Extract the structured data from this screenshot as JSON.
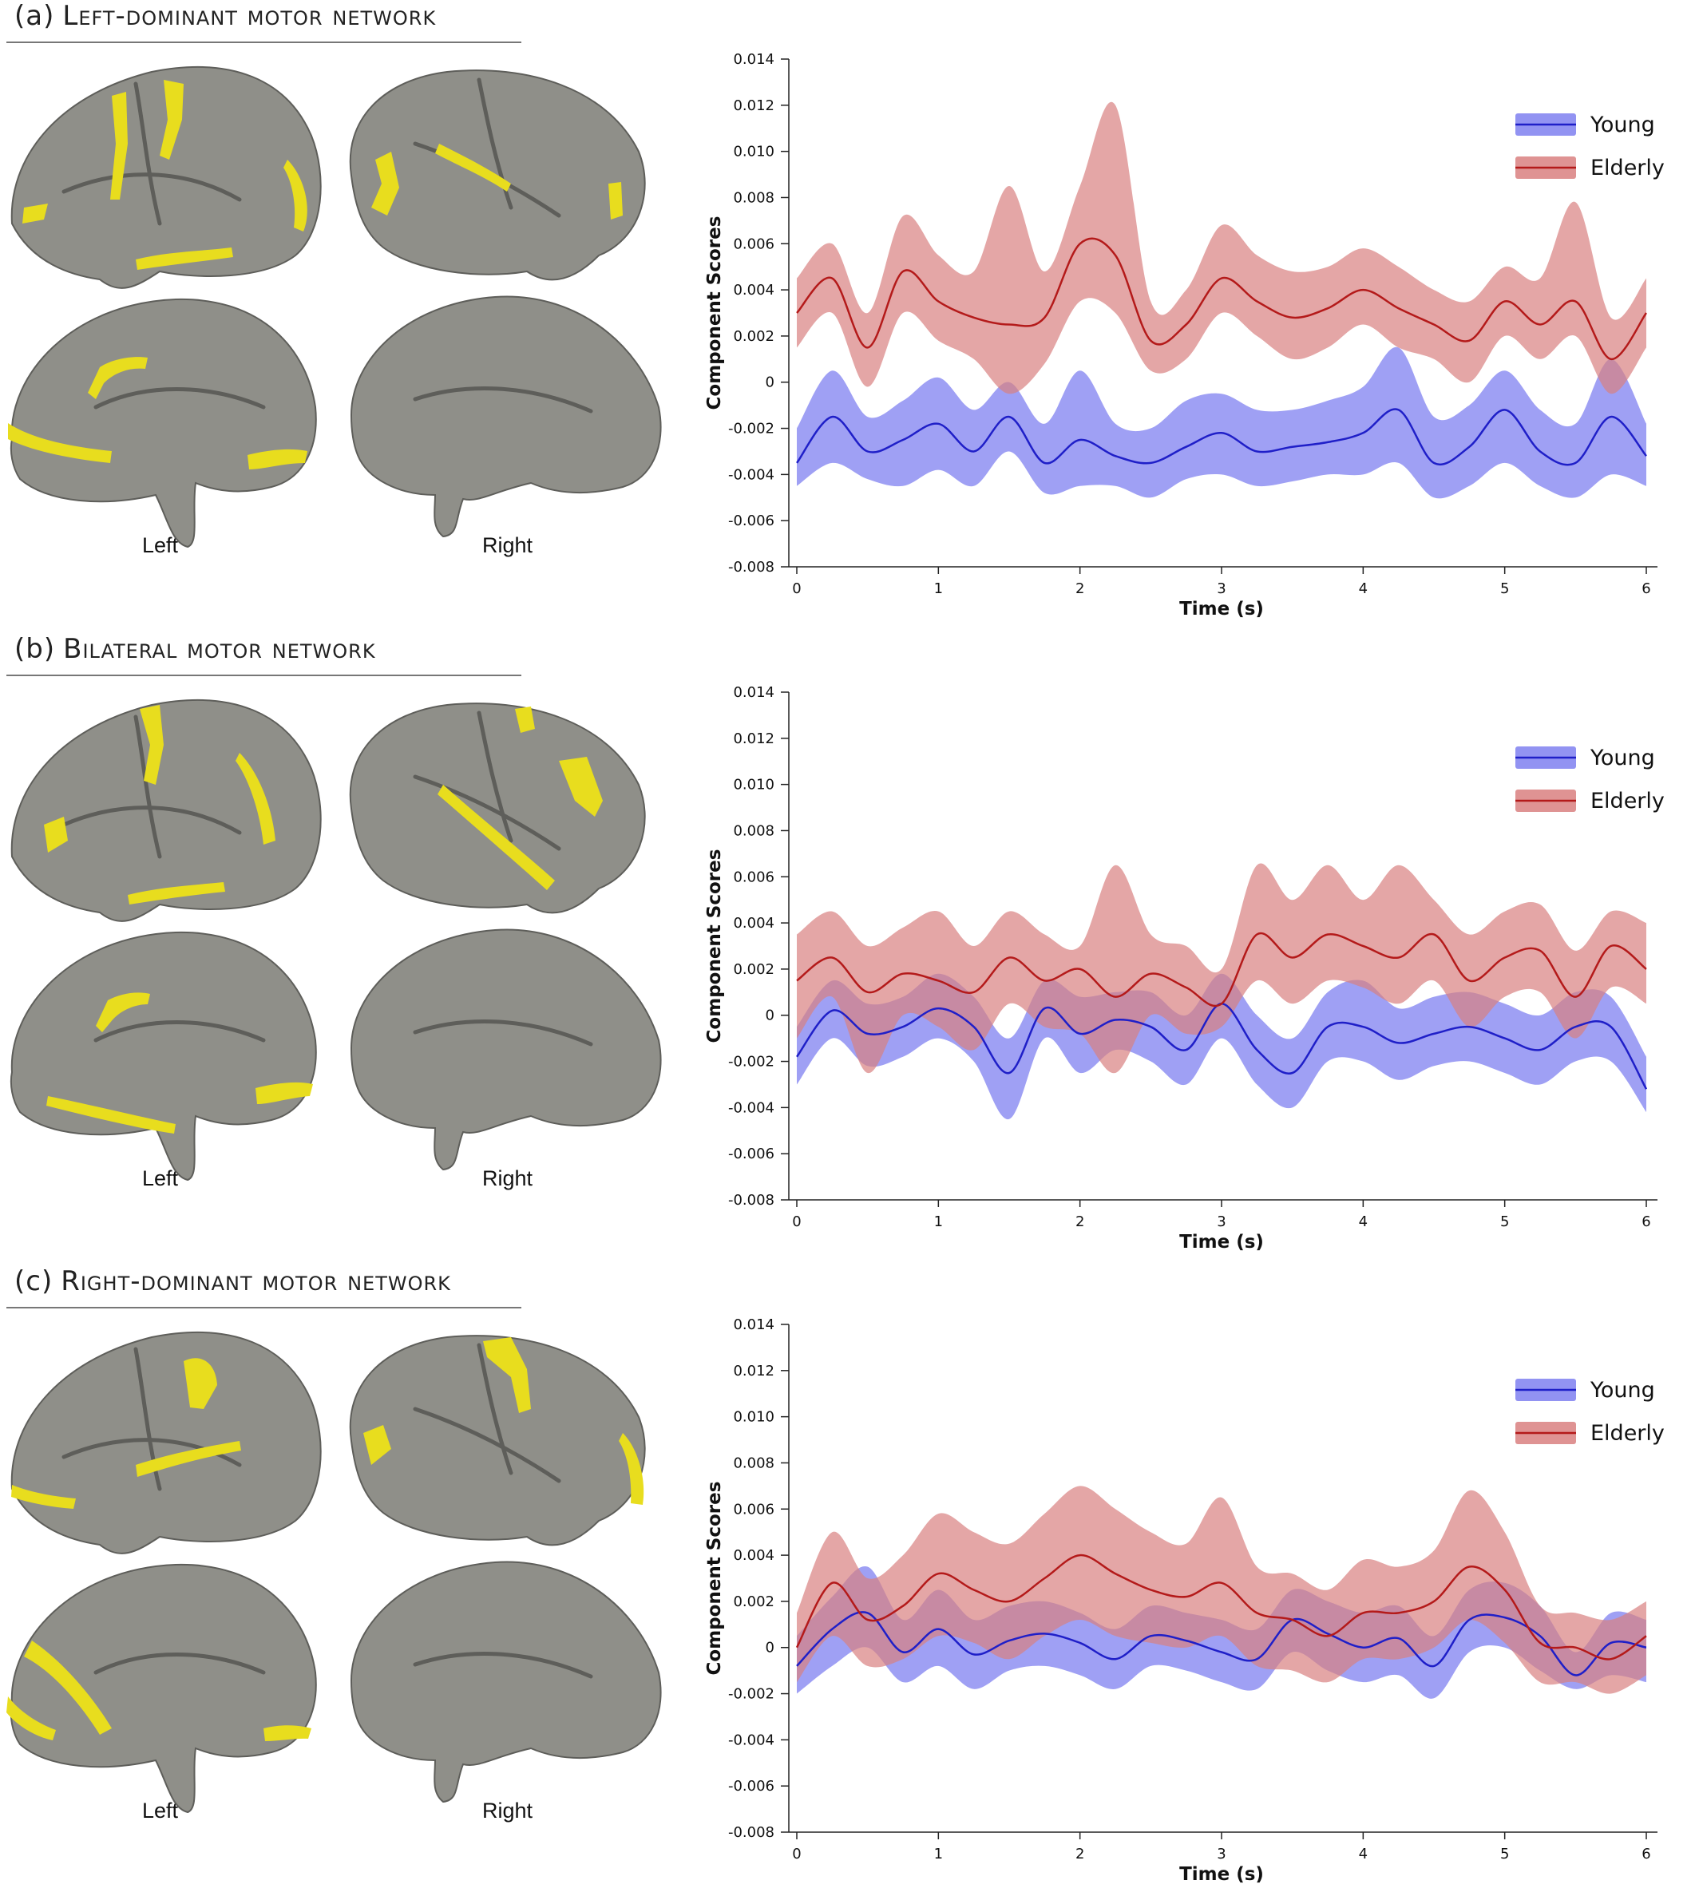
{
  "colors": {
    "young_line": "#1f1fc8",
    "young_band": "#7f80f0",
    "elderly_line": "#b41a1a",
    "elderly_band": "#d98080",
    "brain_surface": "#8f8f89",
    "brain_shadow": "#5e5e5a",
    "activation": "#e8dd1e"
  },
  "panels": [
    {
      "tag": "(a)",
      "title": "Left-dominant motor network",
      "hemisphere_labels": [
        "Left",
        "Right"
      ]
    },
    {
      "tag": "(b)",
      "title": "Bilateral motor network",
      "hemisphere_labels": [
        "Left",
        "Right"
      ]
    },
    {
      "tag": "(c)",
      "title": "Right-dominant motor network",
      "hemisphere_labels": [
        "Left",
        "Right"
      ]
    }
  ],
  "chart_data": [
    {
      "type": "line",
      "xlabel": "Time (s)",
      "ylabel": "Component Scores",
      "xlim": [
        0,
        6
      ],
      "ylim": [
        -0.008,
        0.014
      ],
      "x_ticks": [
        0,
        1,
        2,
        3,
        4,
        5,
        6
      ],
      "y_ticks": [
        "0.014",
        "0.012",
        "0.010",
        "0.008",
        "0.006",
        "0.004",
        "0.002",
        "0",
        "-0.002",
        "-0.004",
        "-0.006",
        "-0.008"
      ],
      "legend": "top-right",
      "grid": false,
      "x": [
        0,
        0.25,
        0.5,
        0.75,
        1,
        1.25,
        1.5,
        1.75,
        2,
        2.25,
        2.5,
        2.75,
        3,
        3.25,
        3.5,
        3.75,
        4,
        4.25,
        4.5,
        4.75,
        5,
        5.25,
        5.5,
        5.75,
        6
      ],
      "series": [
        {
          "name": "Young",
          "mean": [
            -0.0035,
            -0.0015,
            -0.003,
            -0.0025,
            -0.0018,
            -0.003,
            -0.0015,
            -0.0035,
            -0.0025,
            -0.0032,
            -0.0035,
            -0.0028,
            -0.0022,
            -0.003,
            -0.0028,
            -0.0026,
            -0.0022,
            -0.0012,
            -0.0035,
            -0.0028,
            -0.0012,
            -0.003,
            -0.0035,
            -0.0015,
            -0.0032
          ],
          "lower": [
            -0.0045,
            -0.0035,
            -0.0042,
            -0.0045,
            -0.0038,
            -0.0045,
            -0.003,
            -0.0048,
            -0.0045,
            -0.0045,
            -0.005,
            -0.0042,
            -0.004,
            -0.0045,
            -0.0043,
            -0.004,
            -0.004,
            -0.0035,
            -0.005,
            -0.0045,
            -0.0035,
            -0.0045,
            -0.005,
            -0.004,
            -0.0045
          ],
          "upper": [
            -0.002,
            0.0005,
            -0.0015,
            -0.0008,
            0.0002,
            -0.0012,
            0.0,
            -0.0018,
            0.0005,
            -0.0018,
            -0.002,
            -0.0008,
            -0.0005,
            -0.0012,
            -0.0012,
            -0.0008,
            -0.0002,
            0.0015,
            -0.0015,
            -0.001,
            0.0005,
            -0.0012,
            -0.0018,
            0.001,
            -0.0018
          ]
        },
        {
          "name": "Elderly",
          "mean": [
            0.003,
            0.0045,
            0.0015,
            0.0048,
            0.0035,
            0.0028,
            0.0025,
            0.0028,
            0.006,
            0.0055,
            0.0018,
            0.0025,
            0.0045,
            0.0035,
            0.0028,
            0.0032,
            0.004,
            0.0032,
            0.0025,
            0.0018,
            0.0035,
            0.0025,
            0.0035,
            0.001,
            0.003
          ],
          "lower": [
            0.0015,
            0.003,
            -0.0002,
            0.003,
            0.0018,
            0.001,
            -0.0005,
            0.0008,
            0.0035,
            0.003,
            0.0005,
            0.001,
            0.003,
            0.002,
            0.001,
            0.0015,
            0.0025,
            0.0015,
            0.001,
            0.0,
            0.002,
            0.001,
            0.002,
            -0.0005,
            0.0015
          ],
          "upper": [
            0.0045,
            0.006,
            0.003,
            0.0072,
            0.0055,
            0.0048,
            0.0085,
            0.0048,
            0.0085,
            0.012,
            0.0035,
            0.004,
            0.0068,
            0.0055,
            0.0048,
            0.005,
            0.0058,
            0.005,
            0.004,
            0.0035,
            0.005,
            0.0045,
            0.0078,
            0.0028,
            0.0045
          ]
        }
      ]
    },
    {
      "type": "line",
      "xlabel": "Time (s)",
      "ylabel": "Component Scores",
      "xlim": [
        0,
        6
      ],
      "ylim": [
        -0.008,
        0.014
      ],
      "x_ticks": [
        0,
        1,
        2,
        3,
        4,
        5,
        6
      ],
      "y_ticks": [
        "0.014",
        "0.012",
        "0.010",
        "0.008",
        "0.006",
        "0.004",
        "0.002",
        "0",
        "-0.002",
        "-0.004",
        "-0.006",
        "-0.008"
      ],
      "legend": "top-right",
      "grid": false,
      "x": [
        0,
        0.25,
        0.5,
        0.75,
        1,
        1.25,
        1.5,
        1.75,
        2,
        2.25,
        2.5,
        2.75,
        3,
        3.25,
        3.5,
        3.75,
        4,
        4.25,
        4.5,
        4.75,
        5,
        5.25,
        5.5,
        5.75,
        6
      ],
      "series": [
        {
          "name": "Young",
          "mean": [
            -0.0018,
            0.0002,
            -0.0008,
            -0.0005,
            0.0003,
            -0.0005,
            -0.0025,
            0.0003,
            -0.0008,
            -0.0002,
            -0.0005,
            -0.0015,
            0.0005,
            -0.0015,
            -0.0025,
            -0.0005,
            -0.0005,
            -0.0012,
            -0.0008,
            -0.0005,
            -0.001,
            -0.0015,
            -0.0005,
            -0.0005,
            -0.0032
          ],
          "lower": [
            -0.003,
            -0.001,
            -0.0022,
            -0.0018,
            -0.001,
            -0.002,
            -0.0045,
            -0.001,
            -0.0025,
            -0.0015,
            -0.002,
            -0.003,
            -0.001,
            -0.003,
            -0.004,
            -0.002,
            -0.002,
            -0.0028,
            -0.0022,
            -0.002,
            -0.0025,
            -0.003,
            -0.002,
            -0.002,
            -0.0042
          ],
          "upper": [
            -0.0005,
            0.0015,
            0.0005,
            0.0008,
            0.0018,
            0.0008,
            -0.001,
            0.0015,
            0.0008,
            0.001,
            0.001,
            0.0,
            0.0018,
            0.0,
            -0.001,
            0.001,
            0.0015,
            0.0003,
            0.0008,
            0.001,
            0.0005,
            0.0,
            0.001,
            0.0008,
            -0.0018
          ]
        },
        {
          "name": "Elderly",
          "mean": [
            0.0015,
            0.0025,
            0.001,
            0.0018,
            0.0015,
            0.001,
            0.0025,
            0.0015,
            0.002,
            0.0008,
            0.0018,
            0.0012,
            0.0005,
            0.0035,
            0.0025,
            0.0035,
            0.003,
            0.0025,
            0.0035,
            0.0015,
            0.0025,
            0.0028,
            0.0008,
            0.003,
            0.002
          ],
          "lower": [
            -0.001,
            0.0008,
            -0.0025,
            0.0,
            -0.0005,
            -0.0015,
            0.0005,
            -0.0005,
            -0.0008,
            -0.0025,
            0.0,
            -0.0008,
            -0.0005,
            0.0015,
            0.0005,
            0.0015,
            0.0012,
            0.0005,
            0.0015,
            -0.0005,
            0.0008,
            0.001,
            -0.001,
            0.0012,
            0.0005
          ],
          "upper": [
            0.0035,
            0.0045,
            0.003,
            0.0038,
            0.0045,
            0.003,
            0.0045,
            0.0035,
            0.003,
            0.0065,
            0.0035,
            0.003,
            0.002,
            0.0065,
            0.005,
            0.0065,
            0.005,
            0.0065,
            0.005,
            0.0035,
            0.0045,
            0.0048,
            0.0028,
            0.0045,
            0.004
          ]
        }
      ]
    },
    {
      "type": "line",
      "xlabel": "Time (s)",
      "ylabel": "Component Scores",
      "xlim": [
        0,
        6
      ],
      "ylim": [
        -0.008,
        0.014
      ],
      "x_ticks": [
        0,
        1,
        2,
        3,
        4,
        5,
        6
      ],
      "y_ticks": [
        "0.014",
        "0.012",
        "0.010",
        "0.008",
        "0.006",
        "0.004",
        "0.002",
        "0",
        "-0.002",
        "-0.004",
        "-0.006",
        "-0.008"
      ],
      "legend": "top-right",
      "grid": false,
      "x": [
        0,
        0.25,
        0.5,
        0.75,
        1,
        1.25,
        1.5,
        1.75,
        2,
        2.25,
        2.5,
        2.75,
        3,
        3.25,
        3.5,
        3.75,
        4,
        4.25,
        4.5,
        4.75,
        5,
        5.25,
        5.5,
        5.75,
        6
      ],
      "series": [
        {
          "name": "Young",
          "mean": [
            -0.0008,
            0.0008,
            0.0015,
            -0.0002,
            0.0008,
            -0.0003,
            0.0003,
            0.0006,
            0.0002,
            -0.0005,
            0.0005,
            0.0003,
            -0.0002,
            -0.0005,
            0.0012,
            0.0006,
            0.0,
            0.0004,
            -0.0008,
            0.0012,
            0.0013,
            0.0005,
            -0.0012,
            0.0002,
            0.0
          ],
          "lower": [
            -0.002,
            -0.0008,
            0.0,
            -0.0015,
            -0.0008,
            -0.0018,
            -0.001,
            -0.0008,
            -0.0012,
            -0.0018,
            -0.0008,
            -0.001,
            -0.0015,
            -0.0018,
            -0.0002,
            -0.001,
            -0.0015,
            -0.0012,
            -0.0022,
            -0.0002,
            0.0,
            -0.001,
            -0.0018,
            -0.0012,
            -0.0015
          ],
          "upper": [
            0.0005,
            0.0022,
            0.0035,
            0.0012,
            0.0025,
            0.0012,
            0.0018,
            0.002,
            0.0015,
            0.0008,
            0.0018,
            0.0015,
            0.0012,
            0.0008,
            0.0025,
            0.002,
            0.0015,
            0.0018,
            0.0005,
            0.0025,
            0.0028,
            0.0018,
            -0.0002,
            0.0015,
            0.0012
          ]
        },
        {
          "name": "Elderly",
          "mean": [
            0.0,
            0.0028,
            0.0012,
            0.0018,
            0.0032,
            0.0025,
            0.002,
            0.003,
            0.004,
            0.0032,
            0.0025,
            0.0022,
            0.0028,
            0.0015,
            0.0012,
            0.0005,
            0.0015,
            0.0015,
            0.002,
            0.0035,
            0.0025,
            0.0002,
            0.0,
            -0.0005,
            0.0005
          ],
          "lower": [
            -0.0015,
            0.0005,
            -0.0008,
            -0.0005,
            0.0005,
            0.0002,
            -0.0005,
            0.0005,
            0.0012,
            0.0005,
            0.0002,
            0.0,
            0.0005,
            -0.0008,
            -0.001,
            -0.0015,
            -0.0005,
            -0.0005,
            0.0,
            0.0012,
            0.0002,
            -0.0015,
            -0.0015,
            -0.002,
            -0.0012
          ],
          "upper": [
            0.0015,
            0.005,
            0.003,
            0.004,
            0.0058,
            0.005,
            0.0045,
            0.0058,
            0.007,
            0.006,
            0.005,
            0.0045,
            0.0065,
            0.0035,
            0.0032,
            0.0025,
            0.0038,
            0.0035,
            0.0042,
            0.0068,
            0.005,
            0.0018,
            0.0015,
            0.0012,
            0.002
          ]
        }
      ]
    }
  ]
}
